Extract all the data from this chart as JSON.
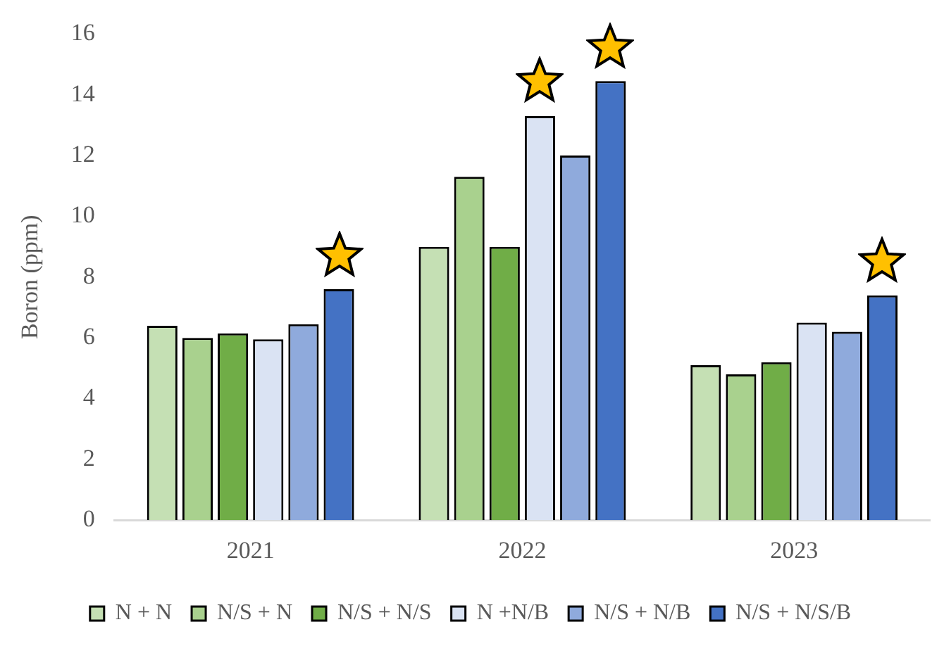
{
  "chart_data": {
    "type": "bar",
    "ylabel": "Boron (ppm)",
    "categories": [
      "2021",
      "2022",
      "2023"
    ],
    "series": [
      {
        "name": "N + N",
        "color": "#c5e0b4",
        "values": [
          6.4,
          9.0,
          5.1
        ]
      },
      {
        "name": "N/S + N",
        "color": "#a9d18e",
        "values": [
          6.0,
          11.3,
          4.8
        ]
      },
      {
        "name": "N/S + N/S",
        "color": "#70ad47",
        "values": [
          6.15,
          9.0,
          5.2
        ]
      },
      {
        "name": "N +N/B",
        "color": "#dae3f3",
        "values": [
          5.95,
          13.3,
          6.5
        ]
      },
      {
        "name": "N/S + N/B",
        "color": "#8faadc",
        "values": [
          6.45,
          12.0,
          6.2
        ]
      },
      {
        "name": "N/S + N/S/B",
        "color": "#4472c4",
        "values": [
          7.6,
          14.45,
          7.4
        ]
      }
    ],
    "ylim": [
      0,
      16
    ],
    "yticks": [
      0,
      2,
      4,
      6,
      8,
      10,
      12,
      14,
      16
    ],
    "grid": false,
    "legend": "bottom"
  }
}
